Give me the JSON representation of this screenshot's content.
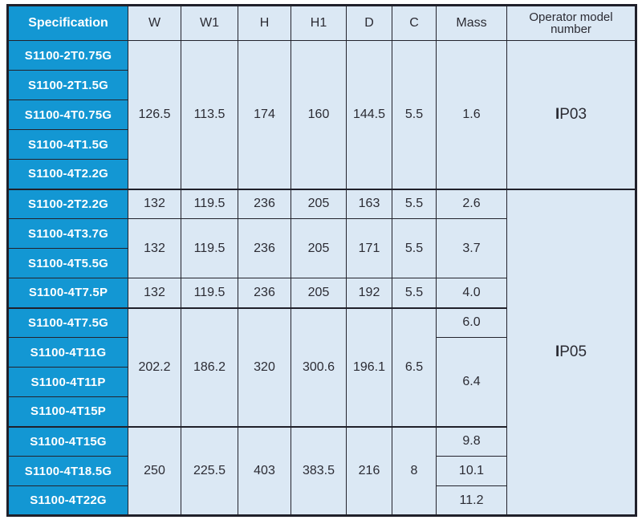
{
  "table": {
    "headers": {
      "spec": "Specification",
      "w": "W",
      "w1": "W1",
      "h": "H",
      "h1": "H1",
      "d": "D",
      "c": "C",
      "mass": "Mass",
      "operator": "Operator model number"
    },
    "specs": [
      "S1100-2T0.75G",
      "S1100-2T1.5G",
      "S1100-4T0.75G",
      "S1100-4T1.5G",
      "S1100-4T2.2G",
      "S1100-2T2.2G",
      "S1100-4T3.7G",
      "S1100-4T5.5G",
      "S1100-4T7.5P",
      "S1100-4T7.5G",
      "S1100-4T11G",
      "S1100-4T11P",
      "S1100-4T15P",
      "S1100-4T15G",
      "S1100-4T18.5G",
      "S1100-4T22G"
    ],
    "groups": {
      "g1": {
        "w": "126.5",
        "w1": "113.5",
        "h": "174",
        "h1": "160",
        "d": "144.5",
        "c": "5.5",
        "mass": "1.6"
      },
      "r6": {
        "w": "132",
        "w1": "119.5",
        "h": "236",
        "h1": "205",
        "d": "163",
        "c": "5.5",
        "mass": "2.6"
      },
      "g2": {
        "w": "132",
        "w1": "119.5",
        "h": "236",
        "h1": "205",
        "d": "171",
        "c": "5.5",
        "mass": "3.7"
      },
      "r9": {
        "w": "132",
        "w1": "119.5",
        "h": "236",
        "h1": "205",
        "d": "192",
        "c": "5.5",
        "mass": "4.0"
      },
      "g3": {
        "w": "202.2",
        "w1": "186.2",
        "h": "320",
        "h1": "300.6",
        "d": "196.1",
        "c": "6.5",
        "mass_a": "6.0",
        "mass_b": "6.4"
      },
      "g4": {
        "w": "250",
        "w1": "225.5",
        "h": "403",
        "h1": "383.5",
        "d": "216",
        "c": "8",
        "mass_a": "9.8",
        "mass_b": "10.1",
        "mass_c": "11.2"
      }
    },
    "operators": {
      "ip03": "IP03",
      "ip05": "IP05"
    }
  },
  "colors": {
    "accent_blue": "#1397d3",
    "cell_light_blue": "#dbe8f4",
    "border_dark": "#23232d",
    "text_dark": "#2b2b33",
    "spec_text": "#ffffff"
  }
}
